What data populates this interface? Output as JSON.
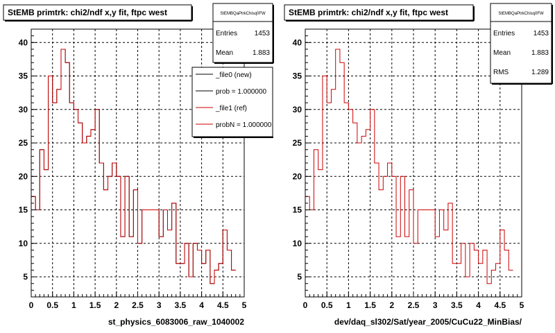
{
  "chart_data": [
    {
      "type": "histogram",
      "title": "StEMB primtrk: chi2/ndf x,y fit, ftpc west",
      "xlabel": "st_physics_6083006_raw_1040002",
      "xlim": [
        0,
        5
      ],
      "ylim": [
        2,
        42
      ],
      "x_ticks": [
        "0",
        "0.5",
        "1",
        "1.5",
        "2",
        "2.5",
        "3",
        "3.5",
        "4",
        "4.5",
        "5"
      ],
      "y_ticks": [
        "5",
        "10",
        "15",
        "20",
        "25",
        "30",
        "35",
        "40"
      ],
      "grid": true,
      "stats": {
        "name": "StEMBQaPtrkChisq0FW",
        "entries_label": "Entries",
        "entries": "1453",
        "mean_label": "Mean",
        "mean": "1.883"
      },
      "legend": {
        "placement": "top-right",
        "entries": [
          {
            "label": "_file0 (new)",
            "color": "#000000"
          },
          {
            "label": "prob = 1.000000",
            "color": "#000000"
          },
          {
            "label": "_file1 (ref)",
            "color": "#cc0000"
          },
          {
            "label": "probN = 1.000000",
            "color": "#cc0000"
          }
        ]
      },
      "bin_width": 0.1,
      "series": [
        {
          "name": "_file0 (new)",
          "color": "#000000",
          "values": [
            17,
            15,
            24,
            21,
            35,
            31,
            33,
            39,
            37,
            31,
            30,
            28,
            25,
            26,
            27,
            30,
            22,
            18,
            20,
            22,
            20,
            11,
            20,
            11,
            18,
            10,
            15,
            15,
            15,
            15,
            11,
            15,
            12,
            16,
            7,
            7,
            10,
            5,
            10,
            9,
            7,
            9,
            4,
            6,
            7,
            12,
            9,
            6
          ]
        },
        {
          "name": "_file1 (ref)",
          "color": "#cc0000",
          "values": [
            17,
            15,
            24,
            21,
            35,
            31,
            33,
            39,
            37,
            31,
            30,
            28,
            25,
            26,
            27,
            30,
            22,
            18,
            20,
            22,
            20,
            11,
            20,
            11,
            18,
            10,
            15,
            15,
            15,
            15,
            11,
            15,
            12,
            16,
            7,
            7,
            10,
            5,
            10,
            9,
            7,
            9,
            4,
            6,
            7,
            12,
            9,
            6
          ]
        }
      ]
    },
    {
      "type": "histogram",
      "title": "StEMB primtrk: chi2/ndf x,y fit, ftpc west",
      "xlabel": "dev/daq_sl302/Sat/year_2005/CuCu22_MinBias/",
      "xlim": [
        0,
        5
      ],
      "ylim": [
        2,
        42
      ],
      "x_ticks": [
        "0",
        "0.5",
        "1",
        "1.5",
        "2",
        "2.5",
        "3",
        "3.5",
        "4",
        "4.5",
        "5"
      ],
      "y_ticks": [
        "5",
        "10",
        "15",
        "20",
        "25",
        "30",
        "35",
        "40"
      ],
      "grid": true,
      "stats": {
        "name": "StEMBQaPtrkChisq0FW",
        "entries_label": "Entries",
        "entries": "1453",
        "mean_label": "Mean",
        "mean": "1.883",
        "rms_label": "RMS",
        "rms": "1.289"
      },
      "bin_width": 0.1,
      "series": [
        {
          "color": "#cc0000",
          "values": [
            17,
            15,
            24,
            21,
            35,
            31,
            33,
            39,
            37,
            31,
            30,
            28,
            25,
            26,
            27,
            30,
            22,
            18,
            20,
            22,
            20,
            11,
            20,
            11,
            18,
            10,
            15,
            15,
            15,
            15,
            11,
            15,
            12,
            16,
            7,
            7,
            10,
            5,
            10,
            9,
            7,
            9,
            4,
            6,
            7,
            12,
            9,
            6
          ]
        }
      ]
    }
  ]
}
